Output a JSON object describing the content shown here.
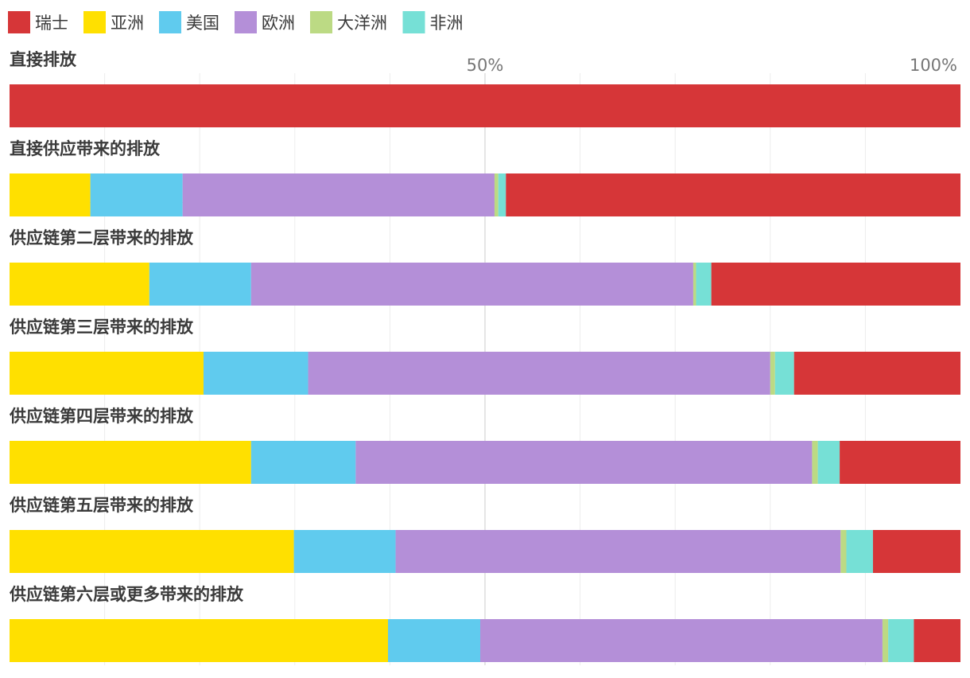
{
  "chart_data": {
    "type": "bar",
    "orientation": "horizontal",
    "stacked": true,
    "normalized_percent": true,
    "xlim": [
      0,
      100
    ],
    "x_ticks": [
      {
        "value": 50,
        "label": "50%"
      },
      {
        "value": 100,
        "label": "100%"
      }
    ],
    "grid": true,
    "legend_position": "top-left",
    "legend": [
      "瑞士",
      "亚洲",
      "美国",
      "欧洲",
      "大洋洲",
      "非洲"
    ],
    "categories": [
      "直接排放",
      "直接供应带来的排放",
      "供应链第二层带来的排放",
      "供应链第三层带来的排放",
      "供应链第四层带来的排放",
      "供应链第五层带来的排放",
      "供应链第六层或更多带来的排放"
    ],
    "stack_order": [
      "亚洲",
      "美国",
      "欧洲",
      "大洋洲",
      "非洲",
      "瑞士"
    ],
    "series": [
      {
        "name": "亚洲",
        "color": "#ffe000",
        "values": [
          0,
          8.5,
          14.7,
          20.4,
          25.4,
          29.9,
          39.8
        ]
      },
      {
        "name": "美国",
        "color": "#60cbee",
        "values": [
          0,
          9.7,
          10.7,
          11.0,
          11.0,
          10.7,
          9.7
        ]
      },
      {
        "name": "欧洲",
        "color": "#b48fd8",
        "values": [
          0,
          32.8,
          46.5,
          48.6,
          48.0,
          46.8,
          42.3
        ]
      },
      {
        "name": "大洋洲",
        "color": "#bcda84",
        "values": [
          0,
          0.4,
          0.3,
          0.5,
          0.6,
          0.6,
          0.6
        ]
      },
      {
        "name": "非洲",
        "color": "#76e0d6",
        "values": [
          0,
          0.8,
          1.6,
          2.0,
          2.3,
          2.8,
          2.7
        ]
      },
      {
        "name": "瑞士",
        "color": "#d63638",
        "values": [
          100,
          47.8,
          26.2,
          17.5,
          12.7,
          9.2,
          4.9
        ]
      }
    ]
  }
}
